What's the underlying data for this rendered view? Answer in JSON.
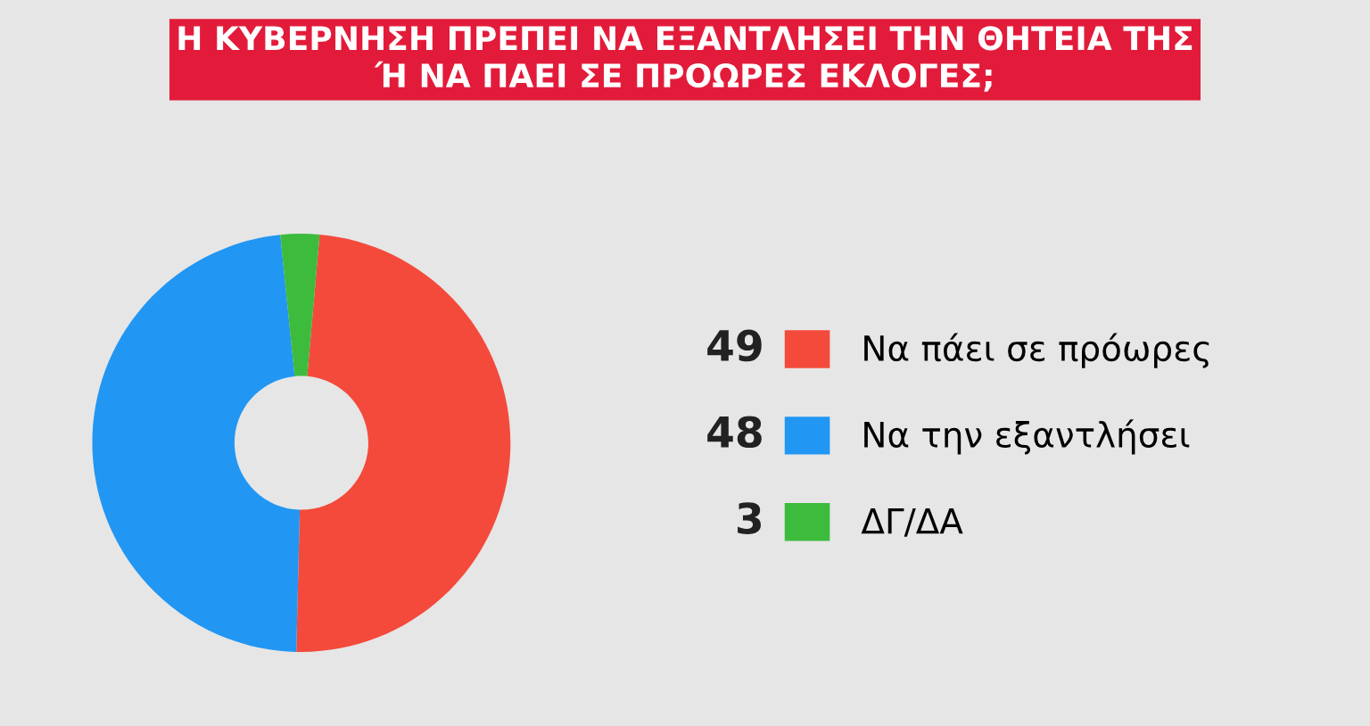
{
  "chart_data": {
    "type": "donut",
    "title": "Η ΚΥΒΕΡΝΗΣΗ ΠΡΕΠΕΙ ΝΑ ΕΞΑΝΤΛΗΣΕΙ ΤΗΝ ΘΗΤΕΙΑ ΤΗΣ\nΉ ΝΑ ΠΑΕΙ ΣΕ ΠΡΟΩΡΕΣ ΕΚΛΟΓΕΣ;",
    "categories": [
      "Να πάει σε πρόωρες",
      "Να την εξαντλήσει",
      "ΔΓ/ΔΑ"
    ],
    "values": [
      49,
      48,
      3
    ],
    "colors": [
      "#f44a3c",
      "#2196f3",
      "#3dbb3d"
    ],
    "annotations": [
      "49",
      "48",
      "3"
    ],
    "legend": "right"
  }
}
